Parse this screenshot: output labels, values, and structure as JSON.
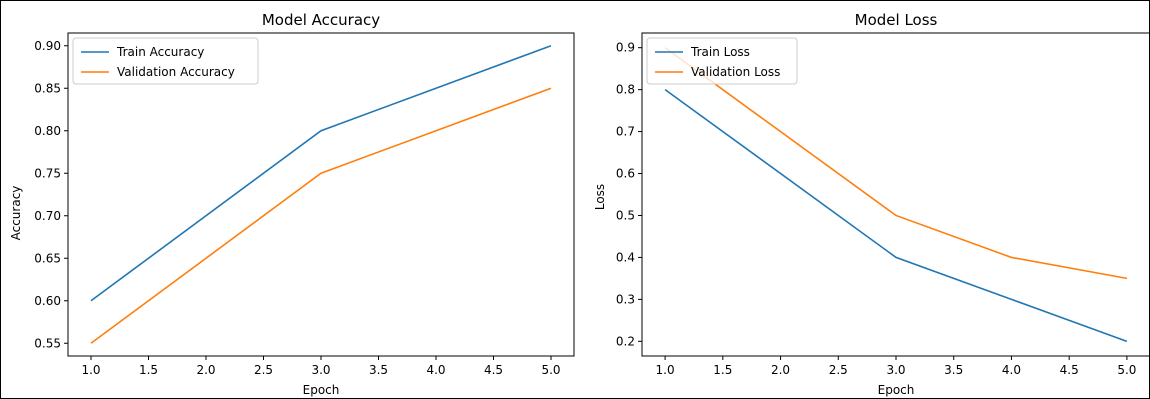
{
  "chart_data": [
    {
      "type": "line",
      "title": "Model Accuracy",
      "xlabel": "Epoch",
      "ylabel": "Accuracy",
      "x": [
        1,
        3,
        4,
        5
      ],
      "xlim": [
        0.8,
        5.2
      ],
      "ylim": [
        0.535,
        0.915
      ],
      "xticks": [
        1.0,
        1.5,
        2.0,
        2.5,
        3.0,
        3.5,
        4.0,
        4.5,
        5.0
      ],
      "xtick_labels": [
        "1.0",
        "1.5",
        "2.0",
        "2.5",
        "3.0",
        "3.5",
        "4.0",
        "4.5",
        "5.0"
      ],
      "yticks": [
        0.55,
        0.6,
        0.65,
        0.7,
        0.75,
        0.8,
        0.85,
        0.9
      ],
      "ytick_labels": [
        "0.55",
        "0.60",
        "0.65",
        "0.70",
        "0.75",
        "0.80",
        "0.85",
        "0.90"
      ],
      "grid": false,
      "legend_position": "top-left",
      "series": [
        {
          "name": "Train Accuracy",
          "color": "#1f77b4",
          "values": [
            0.6,
            0.8,
            0.85,
            0.9
          ]
        },
        {
          "name": "Validation Accuracy",
          "color": "#ff7f0e",
          "values": [
            0.55,
            0.75,
            0.8,
            0.85
          ]
        }
      ]
    },
    {
      "type": "line",
      "title": "Model Loss",
      "xlabel": "Epoch",
      "ylabel": "Loss",
      "x": [
        1,
        3,
        4,
        5
      ],
      "xlim": [
        0.8,
        5.2
      ],
      "ylim": [
        0.165,
        0.935
      ],
      "xticks": [
        1.0,
        1.5,
        2.0,
        2.5,
        3.0,
        3.5,
        4.0,
        4.5,
        5.0
      ],
      "xtick_labels": [
        "1.0",
        "1.5",
        "2.0",
        "2.5",
        "3.0",
        "3.5",
        "4.0",
        "4.5",
        "5.0"
      ],
      "yticks": [
        0.2,
        0.3,
        0.4,
        0.5,
        0.6,
        0.7,
        0.8,
        0.9
      ],
      "ytick_labels": [
        "0.2",
        "0.3",
        "0.4",
        "0.5",
        "0.6",
        "0.7",
        "0.8",
        "0.9"
      ],
      "grid": false,
      "legend_position": "top-left",
      "series": [
        {
          "name": "Train Loss",
          "color": "#1f77b4",
          "values": [
            0.8,
            0.4,
            0.3,
            0.2
          ]
        },
        {
          "name": "Validation Loss",
          "color": "#ff7f0e",
          "values": [
            0.9,
            0.5,
            0.4,
            0.35
          ]
        }
      ]
    }
  ]
}
